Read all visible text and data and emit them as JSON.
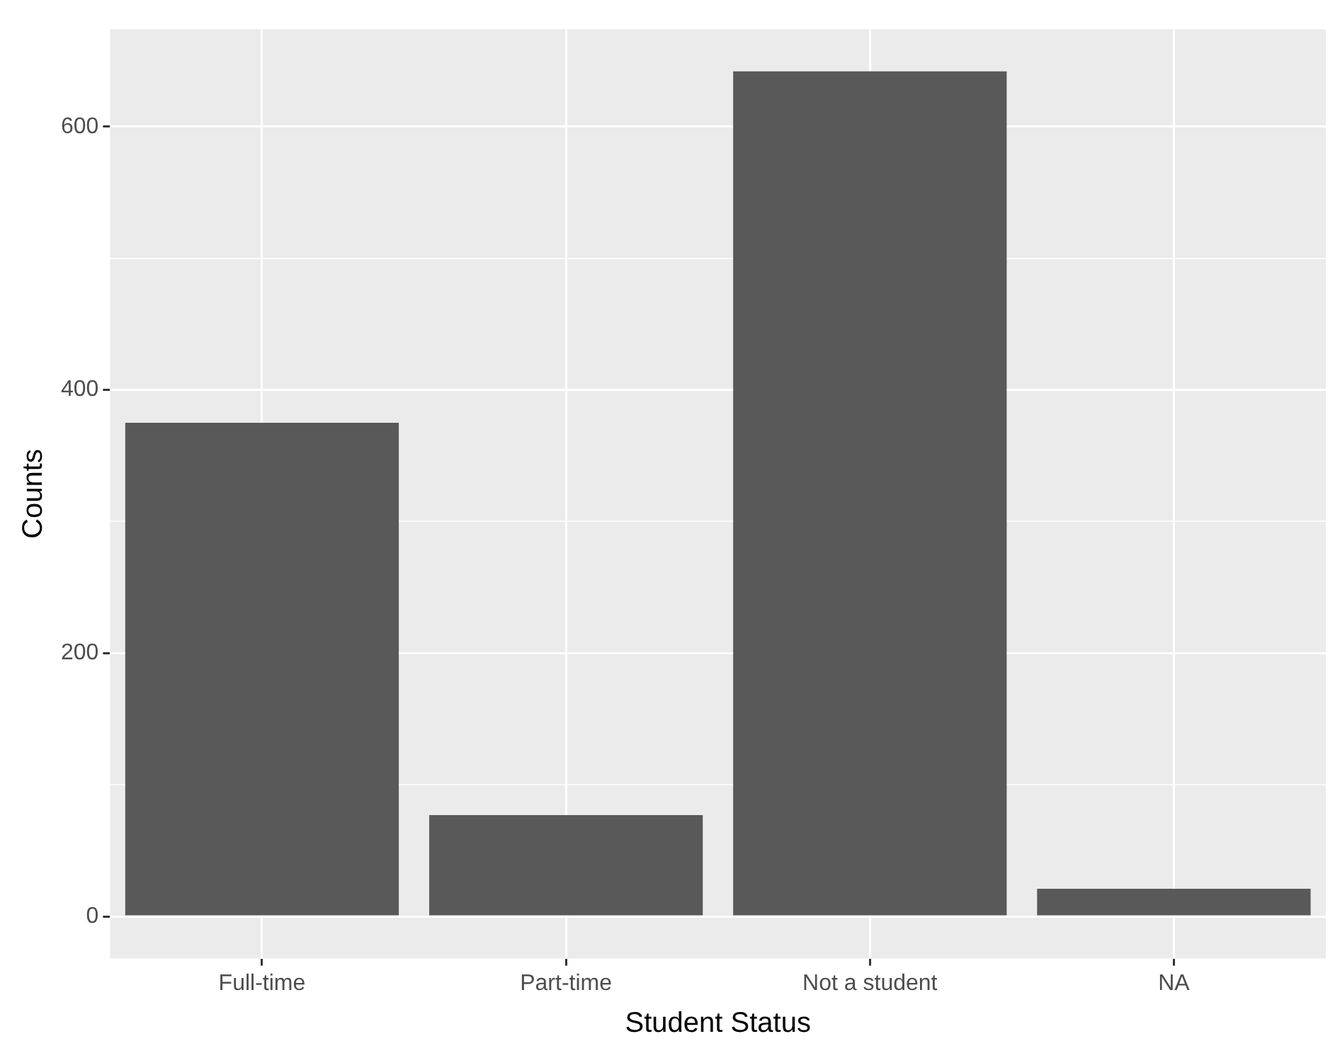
{
  "chart_data": {
    "type": "bar",
    "xlabel": "Student Status",
    "ylabel": "Counts",
    "categories": [
      "Full-time",
      "Part-time",
      "Not a student",
      "NA"
    ],
    "values": [
      375,
      77,
      642,
      21
    ],
    "color": "#595959",
    "ylim": [
      -32,
      674
    ],
    "yticks": [
      0,
      {
        "value": 100,
        "label": null
      },
      200,
      {
        "value": 300,
        "label": null
      },
      400,
      {
        "value": 500,
        "label": null
      },
      600
    ],
    "grid": true
  }
}
